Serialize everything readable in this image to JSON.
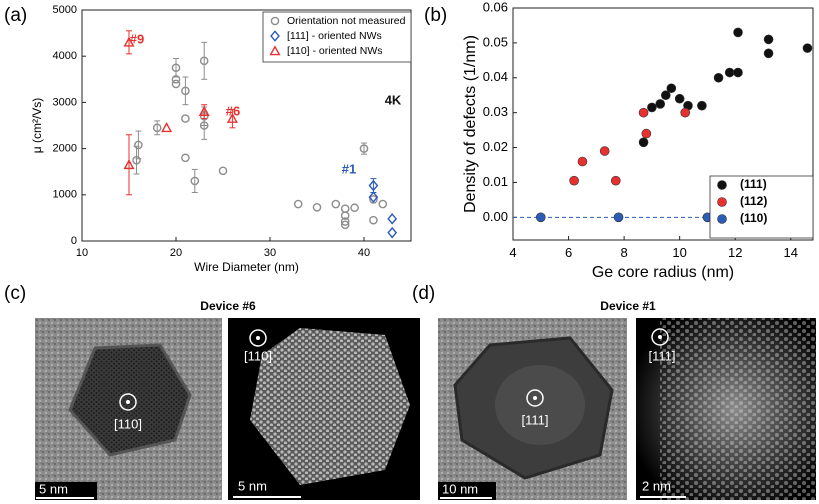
{
  "chart_data": [
    {
      "type": "scatter",
      "panel_label": "(a)",
      "x_label": "Wire Diameter (nm)",
      "y_label": "μ (cm²/Vs)",
      "xlim": [
        10,
        45
      ],
      "xticks": [
        10,
        20,
        30,
        40
      ],
      "ylim": [
        0,
        5000
      ],
      "yticks": [
        0,
        1000,
        2000,
        3000,
        4000,
        5000
      ],
      "legend": "top-right",
      "annotations": [
        {
          "text": "#9",
          "color": "#e8312f"
        },
        {
          "text": "#6",
          "color": "#e8312f"
        },
        {
          "text": "#1",
          "color": "#2b5cb8"
        },
        {
          "text": "4K",
          "color": "#111111"
        }
      ],
      "series": [
        {
          "name": "Orientation not measured",
          "color": "#8c8c8c",
          "marker": "circle",
          "filled": false,
          "x": [
            15.8,
            16,
            18,
            20,
            20,
            20,
            21,
            21,
            21,
            22,
            23,
            23,
            23,
            25,
            33,
            35,
            37,
            38,
            38,
            38,
            38,
            39,
            40,
            41,
            41,
            42
          ],
          "values": [
            1750,
            2080,
            2450,
            3400,
            3750,
            3500,
            3250,
            2650,
            1800,
            1300,
            2500,
            2700,
            3900,
            1520,
            800,
            730,
            800,
            700,
            550,
            420,
            350,
            720,
            2000,
            450,
            900,
            800
          ],
          "errors": [
            300,
            300,
            150,
            null,
            200,
            null,
            300,
            null,
            null,
            250,
            300,
            200,
            400,
            null,
            null,
            null,
            null,
            null,
            null,
            null,
            null,
            null,
            120,
            null,
            null,
            null
          ]
        },
        {
          "name": "[111] - oriented NWs",
          "color": "#2b5cb8",
          "marker": "diamond",
          "filled": false,
          "x": [
            41,
            41,
            43,
            43
          ],
          "values": [
            1200,
            950,
            480,
            180
          ],
          "errors": [
            150,
            null,
            null,
            null
          ]
        },
        {
          "name": "[110] - oriented NWs",
          "color": "#e8312f",
          "marker": "triangle",
          "filled": false,
          "x": [
            15,
            15,
            19,
            23,
            26
          ],
          "values": [
            4300,
            1650,
            2450,
            2800,
            2650
          ],
          "errors": [
            250,
            650,
            null,
            150,
            200
          ]
        }
      ]
    },
    {
      "type": "scatter",
      "panel_label": "(b)",
      "x_label": "Ge core radius (nm)",
      "y_label": "Density of defects (1/nm)",
      "xlim": [
        4,
        14.8
      ],
      "xticks": [
        4,
        6,
        8,
        10,
        12,
        14
      ],
      "ylim": [
        -0.0065,
        0.06
      ],
      "yticks": [
        {
          "value": 0,
          "label": "0.00"
        },
        0.01,
        0.02,
        0.03,
        0.04,
        0.05,
        0.06
      ],
      "legend": "bottom-right",
      "series": [
        {
          "name": "(111)",
          "color": "#111111",
          "marker": "circle",
          "filled": true,
          "x": [
            8.7,
            9,
            9.3,
            9.5,
            9.7,
            10,
            10.3,
            10.8,
            11.4,
            11.8,
            12.1,
            12.1,
            13.2,
            13.2,
            14.6
          ],
          "values": [
            0.0215,
            0.0315,
            0.0325,
            0.035,
            0.037,
            0.034,
            0.032,
            0.032,
            0.04,
            0.0415,
            0.0415,
            0.053,
            0.051,
            0.047,
            0.0485
          ]
        },
        {
          "name": "(112)",
          "color": "#e8312f",
          "marker": "circle",
          "filled": true,
          "x": [
            6.2,
            6.5,
            7.3,
            7.7,
            8.7,
            8.8,
            10.2
          ],
          "values": [
            0.0105,
            0.016,
            0.019,
            0.0105,
            0.03,
            0.024,
            0.03
          ]
        },
        {
          "name": "(110)",
          "color": "#2b5cb8",
          "marker": "circle",
          "filled": true,
          "x": [
            5,
            7.8,
            11
          ],
          "values": [
            0,
            0,
            0
          ]
        }
      ]
    }
  ],
  "panels": {
    "c": {
      "label": "(c)",
      "title": "Device #6",
      "images": [
        {
          "direction": "[110]",
          "scale": "5 nm"
        },
        {
          "direction": "[110]",
          "scale": "5 nm"
        }
      ]
    },
    "d": {
      "label": "(d)",
      "title": "Device #1",
      "images": [
        {
          "direction": "[111]",
          "scale": "10 nm"
        },
        {
          "direction": "[111]",
          "scale": "2 nm"
        }
      ]
    }
  }
}
